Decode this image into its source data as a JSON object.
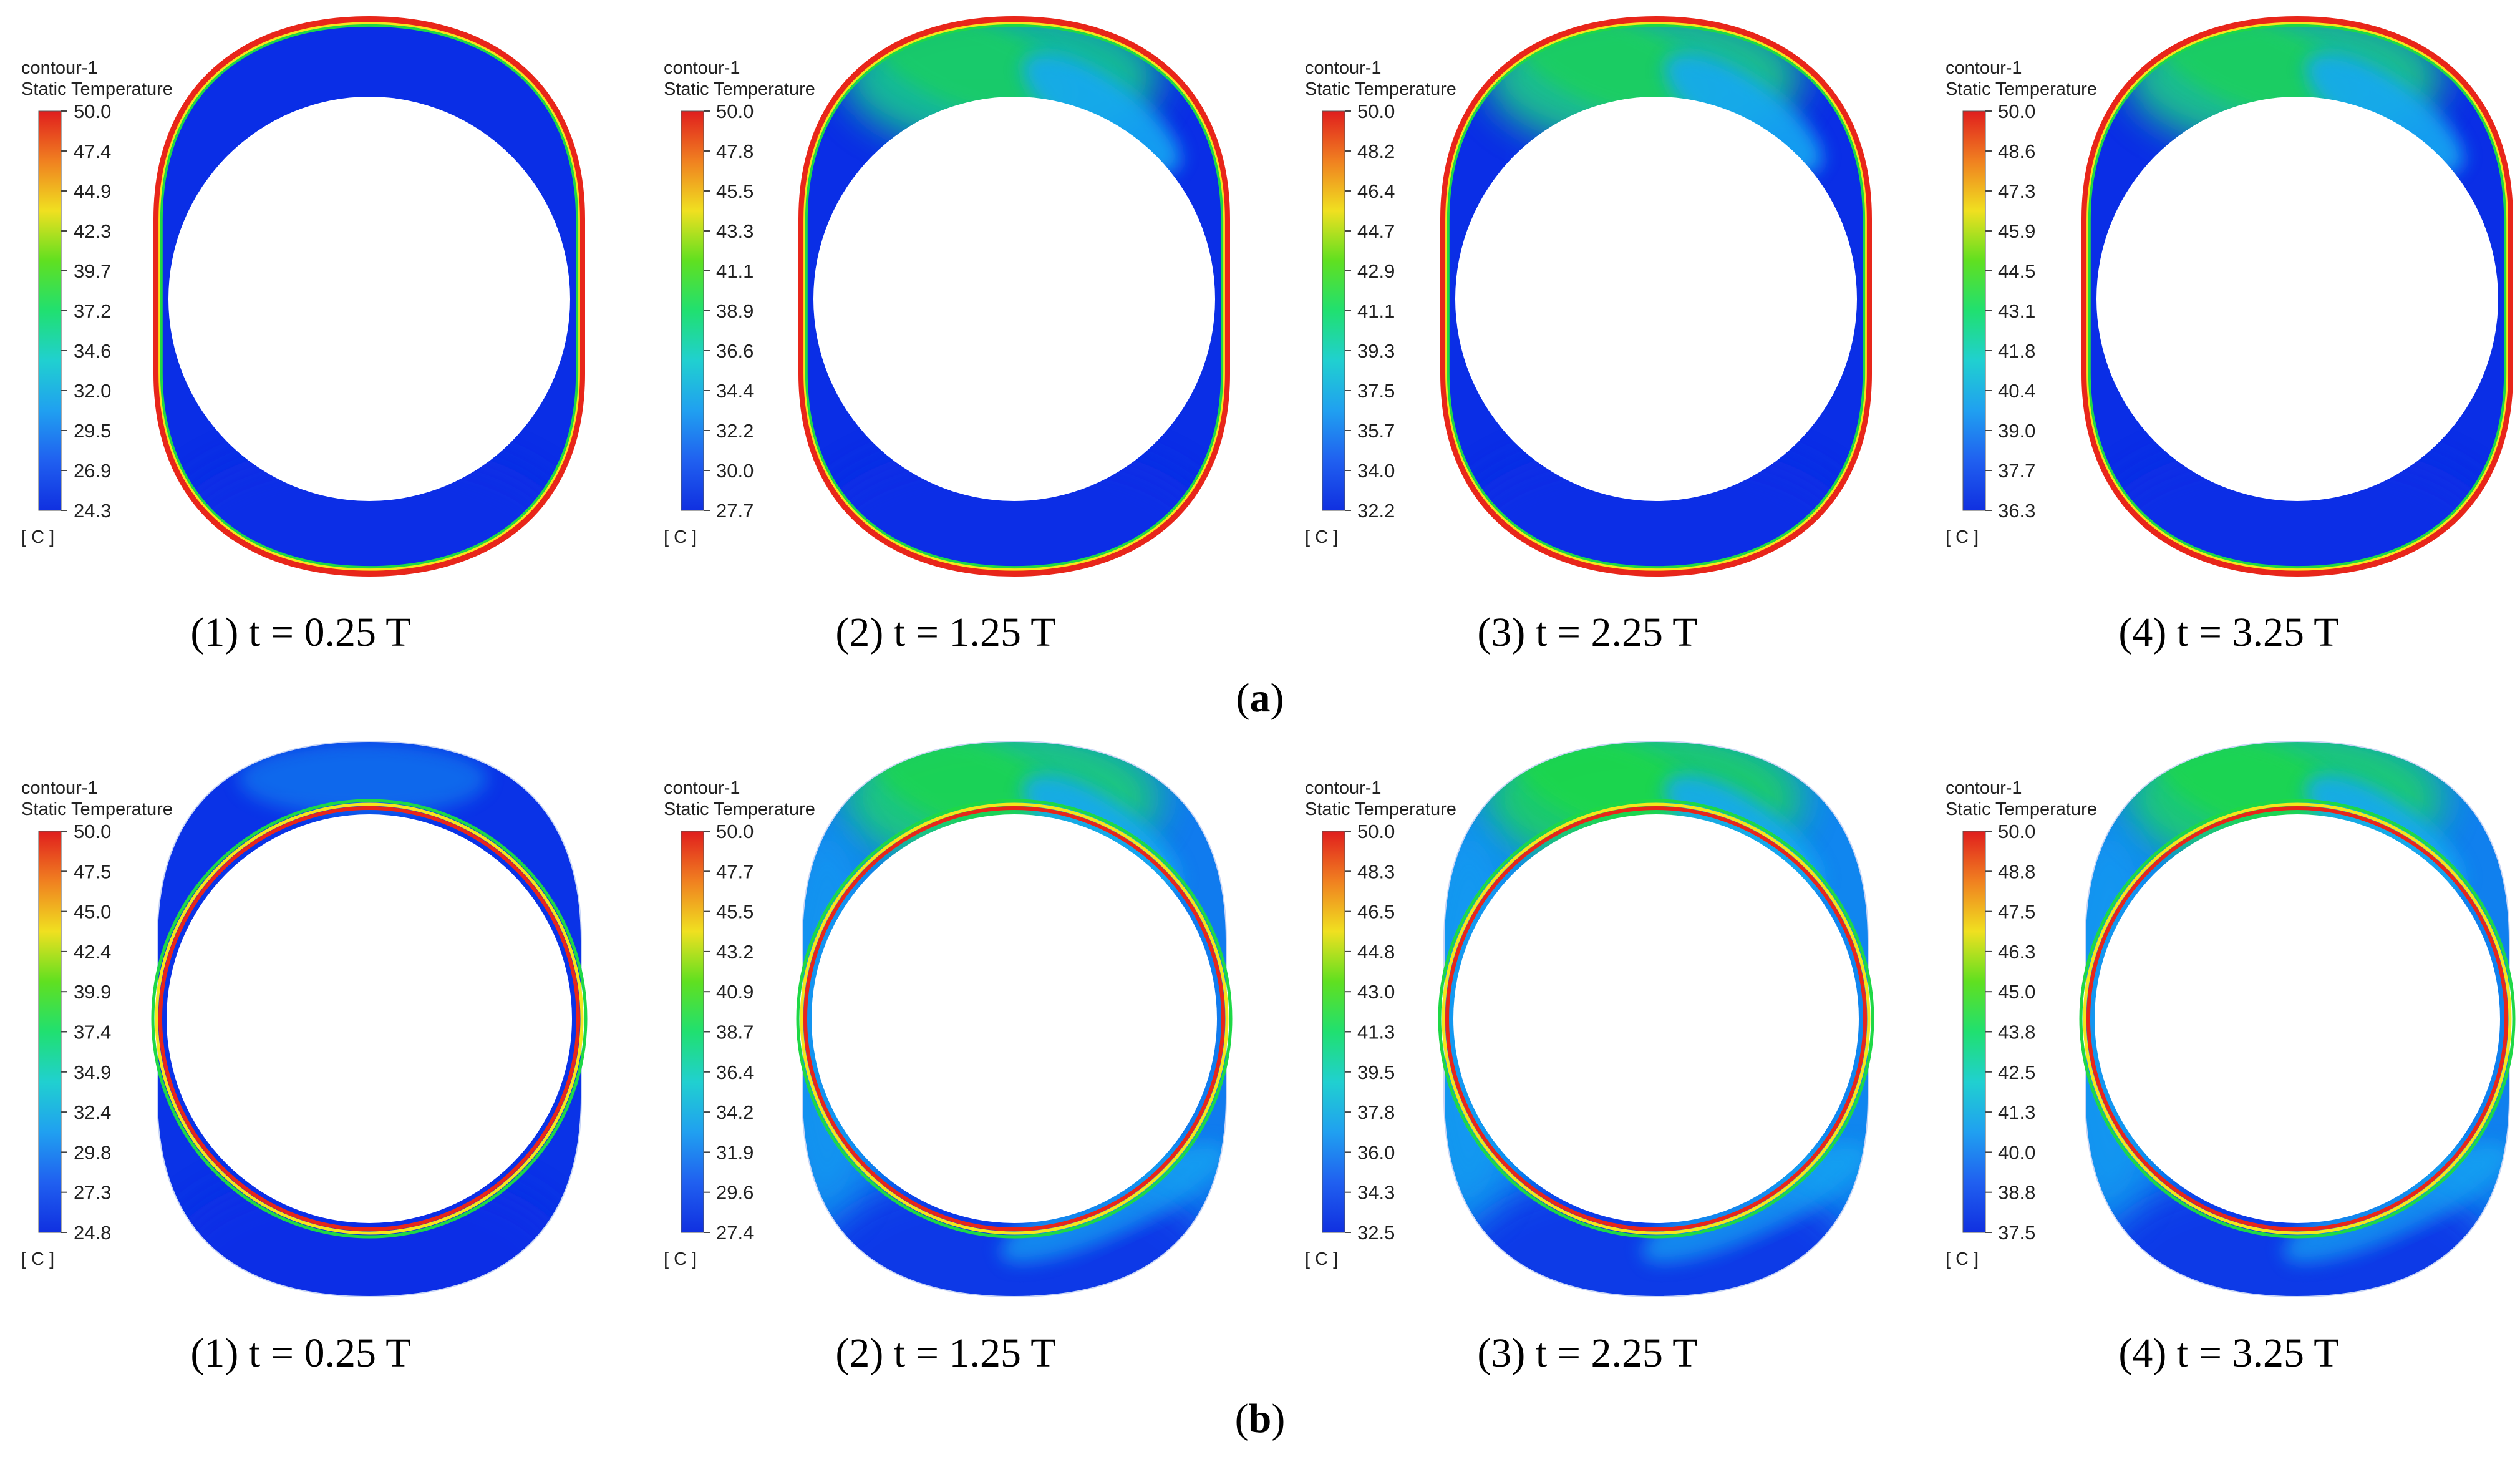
{
  "colors": {
    "cold": "#0a2ee6",
    "cool": "#13a8f2",
    "mid": "#1ed846",
    "warm": "#f5e61c",
    "hot": "#e8261a",
    "colorbar_stops": [
      "#e01e1e",
      "#f08020",
      "#f0e020",
      "#60e020",
      "#20e070",
      "#20d0d0",
      "#20a0f0",
      "#2060f0",
      "#1030e0"
    ]
  },
  "rows": [
    {
      "id": "a",
      "label_text": "a",
      "panels": [
        {
          "legend_title_1": "contour-1",
          "legend_title_2": "Static Temperature",
          "unit": "[ C ]",
          "ticks": [
            "50.0",
            "47.4",
            "44.9",
            "42.3",
            "39.7",
            "37.2",
            "34.6",
            "32.0",
            "29.5",
            "26.9",
            "24.3"
          ],
          "caption": "(1) t = 0.25 T",
          "hot_level": 0.0
        },
        {
          "legend_title_1": "contour-1",
          "legend_title_2": "Static Temperature",
          "unit": "[ C ]",
          "ticks": [
            "50.0",
            "47.8",
            "45.5",
            "43.3",
            "41.1",
            "38.9",
            "36.6",
            "34.4",
            "32.2",
            "30.0",
            "27.7"
          ],
          "caption": "(2) t = 1.25 T",
          "hot_level": 0.55
        },
        {
          "legend_title_1": "contour-1",
          "legend_title_2": "Static Temperature",
          "unit": "[ C ]",
          "ticks": [
            "50.0",
            "48.2",
            "46.4",
            "44.7",
            "42.9",
            "41.1",
            "39.3",
            "37.5",
            "35.7",
            "34.0",
            "32.2"
          ],
          "caption": "(3) t = 2.25 T",
          "hot_level": 0.6
        },
        {
          "legend_title_1": "contour-1",
          "legend_title_2": "Static Temperature",
          "unit": "[ C ]",
          "ticks": [
            "50.0",
            "48.6",
            "47.3",
            "45.9",
            "44.5",
            "43.1",
            "41.8",
            "40.4",
            "39.0",
            "37.7",
            "36.3"
          ],
          "caption": "(4) t = 3.25 T",
          "hot_level": 0.6
        }
      ]
    },
    {
      "id": "b",
      "label_text": "b",
      "panels": [
        {
          "legend_title_1": "contour-1",
          "legend_title_2": "Static Temperature",
          "unit": "[ C ]",
          "ticks": [
            "50.0",
            "47.5",
            "45.0",
            "42.4",
            "39.9",
            "37.4",
            "34.9",
            "32.4",
            "29.8",
            "27.3",
            "24.8"
          ],
          "caption": "(1) t = 0.25 T",
          "hot_level": 0.05
        },
        {
          "legend_title_1": "contour-1",
          "legend_title_2": "Static Temperature",
          "unit": "[ C ]",
          "ticks": [
            "50.0",
            "47.7",
            "45.5",
            "43.2",
            "40.9",
            "38.7",
            "36.4",
            "34.2",
            "31.9",
            "29.6",
            "27.4"
          ],
          "caption": "(2) t = 1.25 T",
          "hot_level": 0.7
        },
        {
          "legend_title_1": "contour-1",
          "legend_title_2": "Static Temperature",
          "unit": "[ C ]",
          "ticks": [
            "50.0",
            "48.3",
            "46.5",
            "44.8",
            "43.0",
            "41.3",
            "39.5",
            "37.8",
            "36.0",
            "34.3",
            "32.5"
          ],
          "caption": "(3) t = 2.25 T",
          "hot_level": 0.8
        },
        {
          "legend_title_1": "contour-1",
          "legend_title_2": "Static Temperature",
          "unit": "[ C ]",
          "ticks": [
            "50.0",
            "48.8",
            "47.5",
            "46.3",
            "45.0",
            "43.8",
            "42.5",
            "41.3",
            "40.0",
            "38.8",
            "37.5"
          ],
          "caption": "(4) t = 3.25 T",
          "hot_level": 0.75
        }
      ]
    }
  ]
}
